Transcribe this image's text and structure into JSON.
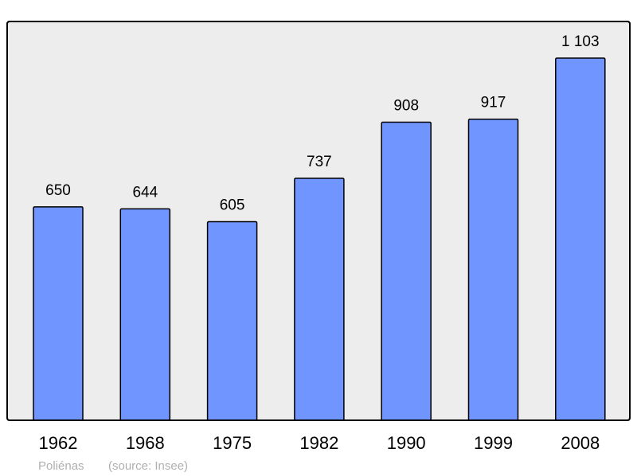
{
  "chart_data": {
    "type": "bar",
    "categories": [
      "1962",
      "1968",
      "1975",
      "1982",
      "1990",
      "1999",
      "2008"
    ],
    "values": [
      650,
      644,
      605,
      737,
      908,
      917,
      1103
    ],
    "data_labels": [
      "650",
      "644",
      "605",
      "737",
      "908",
      "917",
      "1 103"
    ],
    "title": "",
    "xlabel": "",
    "ylabel": "",
    "ylim": [
      0,
      1215
    ],
    "grid": false,
    "colors": {
      "bar": "#7095ff",
      "plot_background": "#ededed",
      "frame": "#000000"
    }
  },
  "footer": {
    "commune": "Poliénas",
    "source": "(source: Insee)"
  }
}
